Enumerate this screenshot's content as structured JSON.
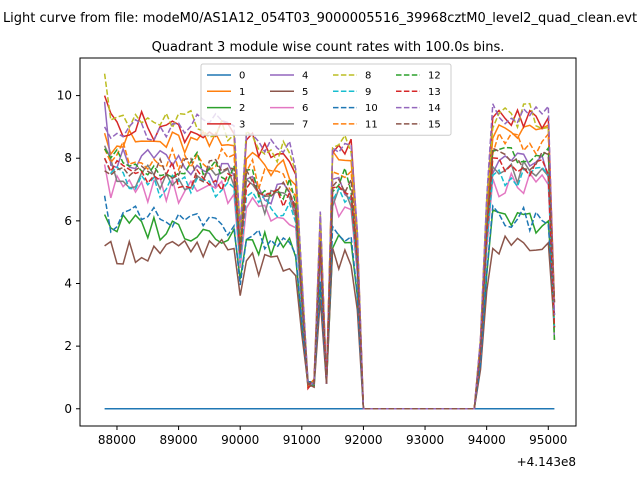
{
  "chart_data": {
    "type": "line",
    "suptitle": "Light curve from file: modeM0/AS1A12_054T03_9000005516_39968cztM0_level2_quad_clean.evt",
    "title": "Quadrant 3 module wise count rates with 100.0s bins.",
    "xlabel": "",
    "ylabel": "",
    "x_offset_label": "+4.143e8",
    "xlim": [
      87400,
      95450
    ],
    "ylim": [
      -0.55,
      11.2
    ],
    "xticks": [
      88000,
      89000,
      90000,
      91000,
      92000,
      93000,
      94000,
      95000
    ],
    "yticks": [
      0,
      2,
      4,
      6,
      8,
      10
    ],
    "grid": false,
    "legend_position": "upper center",
    "legend_columns": 4,
    "series": [
      {
        "name": "0",
        "color": "#1f77b4",
        "style": "solid",
        "level": 0.0,
        "first": 0.0,
        "profile": "flat"
      },
      {
        "name": "1",
        "color": "#ff7f0e",
        "style": "solid",
        "level": 8.4,
        "first": 8.8,
        "profile": "normal"
      },
      {
        "name": "2",
        "color": "#2ca02c",
        "style": "solid",
        "level": 5.7,
        "first": 6.2,
        "profile": "normal"
      },
      {
        "name": "3",
        "color": "#d62728",
        "style": "solid",
        "level": 8.8,
        "first": 10.0,
        "profile": "normal"
      },
      {
        "name": "4",
        "color": "#9467bd",
        "style": "solid",
        "level": 7.4,
        "first": 9.8,
        "profile": "normal"
      },
      {
        "name": "5",
        "color": "#8c564b",
        "style": "solid",
        "level": 5.0,
        "first": 5.2,
        "profile": "normal"
      },
      {
        "name": "6",
        "color": "#e377c2",
        "style": "solid",
        "level": 6.8,
        "first": 7.8,
        "profile": "normal"
      },
      {
        "name": "7",
        "color": "#7f7f7f",
        "style": "solid",
        "level": 7.2,
        "first": 8.4,
        "profile": "normal"
      },
      {
        "name": "8",
        "color": "#bcbd22",
        "style": "dashed",
        "level": 8.9,
        "first": 10.7,
        "profile": "normal"
      },
      {
        "name": "9",
        "color": "#17becf",
        "style": "dashed",
        "level": 7.0,
        "first": 8.0,
        "profile": "normal"
      },
      {
        "name": "10",
        "color": "#1f77b4",
        "style": "dashed",
        "level": 5.8,
        "first": 6.8,
        "profile": "normal"
      },
      {
        "name": "11",
        "color": "#ff7f0e",
        "style": "dashed",
        "level": 8.0,
        "first": 8.3,
        "profile": "normal"
      },
      {
        "name": "12",
        "color": "#2ca02c",
        "style": "dashed",
        "level": 7.7,
        "first": 8.3,
        "profile": "normal"
      },
      {
        "name": "13",
        "color": "#d62728",
        "style": "dashed",
        "level": 7.4,
        "first": 8.0,
        "profile": "normal"
      },
      {
        "name": "14",
        "color": "#9467bd",
        "style": "dashed",
        "level": 9.0,
        "first": 9.0,
        "profile": "normal"
      },
      {
        "name": "15",
        "color": "#8c564b",
        "style": "dashed",
        "level": 7.6,
        "first": 7.6,
        "profile": "normal"
      }
    ],
    "segments": [
      {
        "t0": 87800,
        "t1": 89900,
        "shape": "plateau"
      },
      {
        "t0": 89900,
        "t1": 90900,
        "shape": "dip"
      },
      {
        "t0": 90900,
        "t1": 91900,
        "shape": "oscillation"
      },
      {
        "t0": 91900,
        "t1": 93850,
        "shape": "gap"
      },
      {
        "t0": 93850,
        "t1": 95100,
        "shape": "plateau_end"
      }
    ]
  }
}
